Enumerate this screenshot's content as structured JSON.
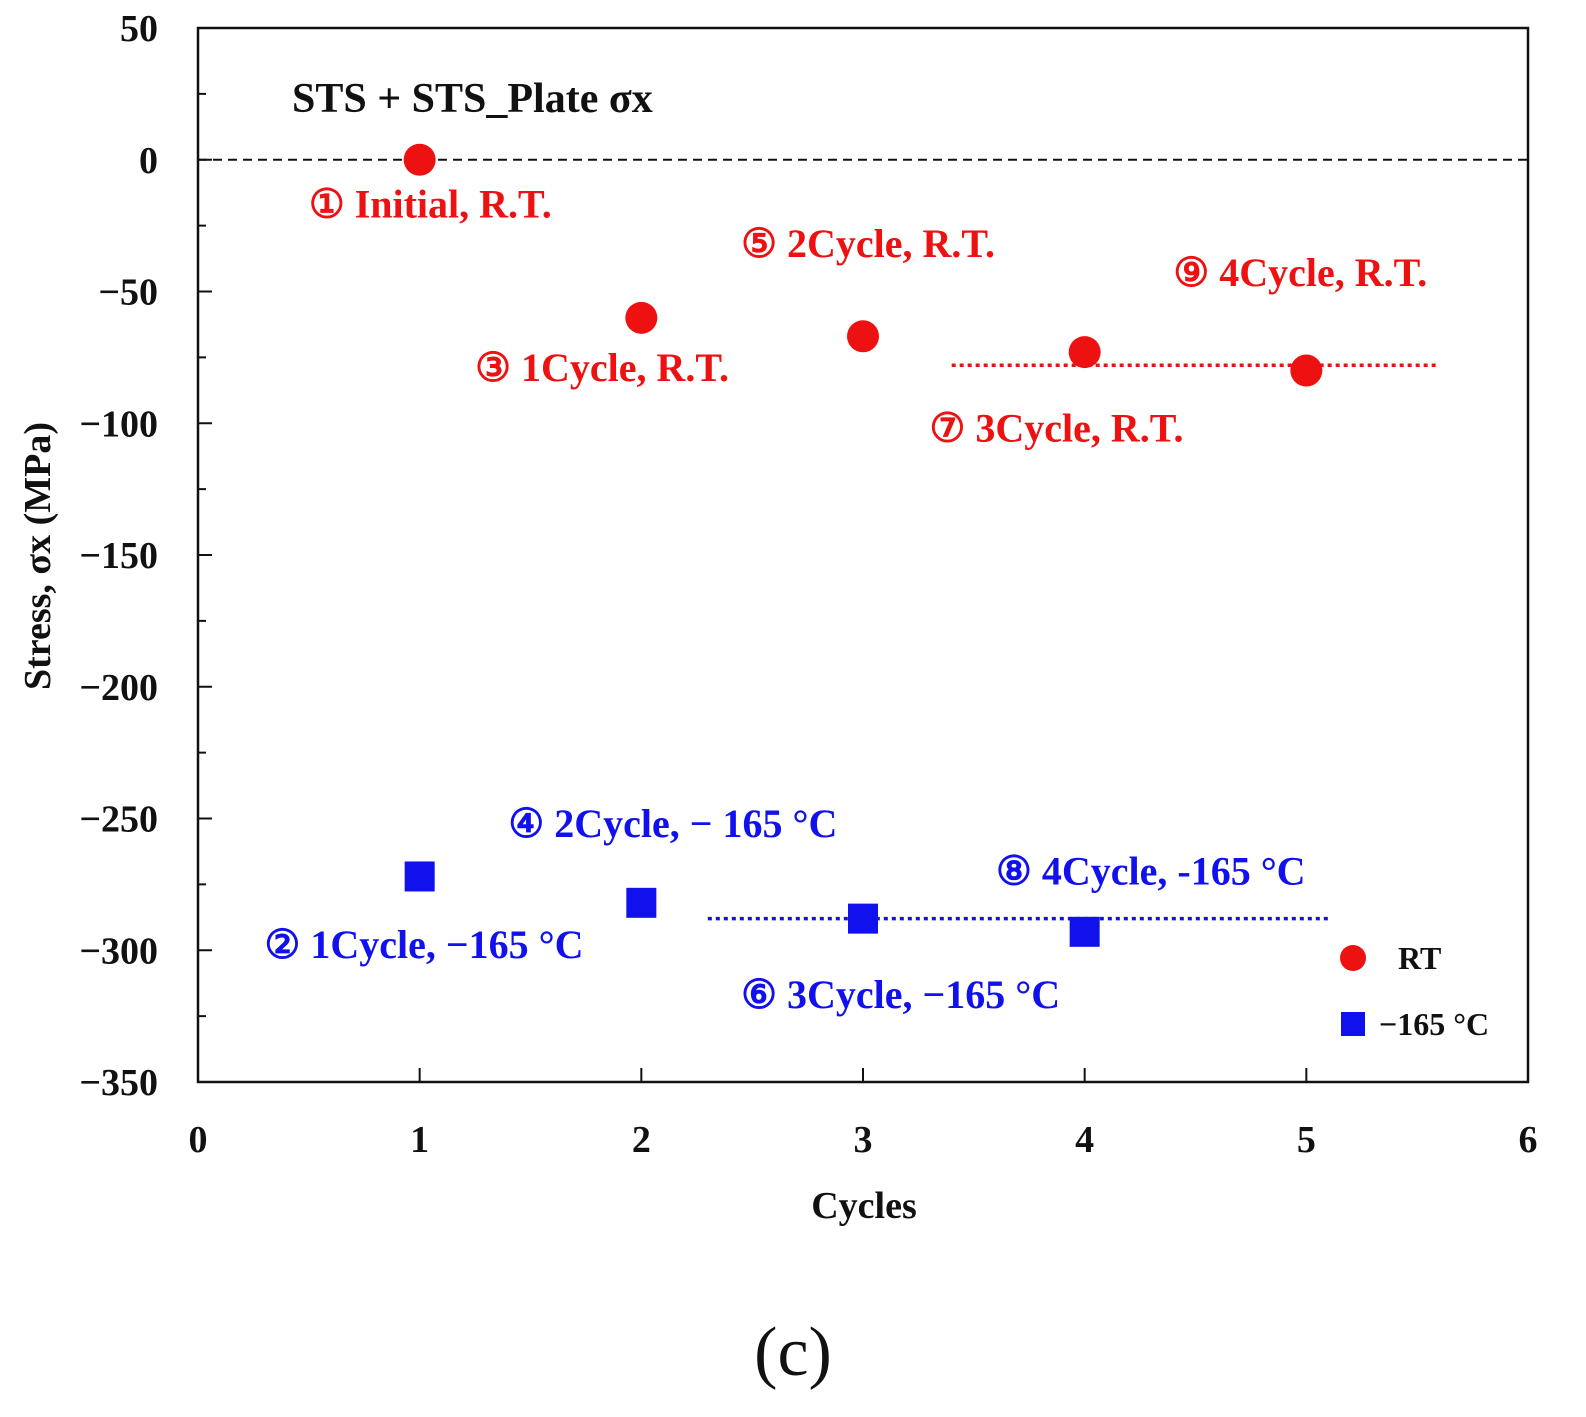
{
  "chart_data": {
    "type": "scatter",
    "title": "STS + STS_Plate σx",
    "xlabel": "Cycles",
    "ylabel": "Stress, σx (MPa)",
    "xlim": [
      0,
      6
    ],
    "ylim": [
      -350,
      50
    ],
    "xticks": [
      "0",
      "1",
      "2",
      "3",
      "4",
      "5",
      "6"
    ],
    "yticks": [
      "50",
      "0",
      "−50",
      "−100",
      "−150",
      "−200",
      "−250",
      "−300",
      "−350"
    ],
    "xtick_values": [
      0,
      1,
      2,
      3,
      4,
      5,
      6
    ],
    "ytick_values": [
      50,
      0,
      -50,
      -100,
      -150,
      -200,
      -250,
      -300,
      -350
    ],
    "reference_line_y": 0,
    "series": [
      {
        "name": "RT",
        "marker": "circle",
        "color": "#ee1111",
        "x": [
          1,
          2,
          3,
          4,
          5
        ],
        "y": [
          0,
          -60,
          -67,
          -73,
          -80
        ],
        "mean_line": {
          "x": [
            3.4,
            5.6
          ],
          "y": -78
        }
      },
      {
        "name": "−165 °C",
        "marker": "square",
        "color": "#1111ee",
        "x": [
          1,
          2,
          3,
          4
        ],
        "y": [
          -272,
          -282,
          -288,
          -293
        ],
        "mean_line": {
          "x": [
            2.3,
            5.1
          ],
          "y": -288
        }
      }
    ],
    "annotations": [
      {
        "text": "① Initial, R.T.",
        "series": "RT",
        "x": 0.5,
        "y": -22
      },
      {
        "text": "③ 1Cycle, R.T.",
        "series": "RT",
        "x": 1.25,
        "y": -84
      },
      {
        "text": "⑤ 2Cycle, R.T.",
        "series": "RT",
        "x": 2.45,
        "y": -37
      },
      {
        "text": "⑦ 3Cycle, R.T.",
        "series": "RT",
        "x": 3.3,
        "y": -107
      },
      {
        "text": "⑨ 4Cycle, R.T.",
        "series": "RT",
        "x": 4.4,
        "y": -48
      },
      {
        "text": "② 1Cycle, −165 °C",
        "series": "−165 °C",
        "x": 0.3,
        "y": -303
      },
      {
        "text": "④ 2Cycle, − 165 °C",
        "series": "−165 °C",
        "x": 1.4,
        "y": -257
      },
      {
        "text": "⑥ 3Cycle, −165 °C",
        "series": "−165 °C",
        "x": 2.45,
        "y": -322
      },
      {
        "text": "⑧ 4Cycle, -165 °C",
        "series": "−165 °C",
        "x": 3.6,
        "y": -275
      }
    ],
    "legend": {
      "position": "bottom-right",
      "entries": [
        "RT",
        "−165 °C"
      ]
    }
  },
  "caption": "(c)"
}
